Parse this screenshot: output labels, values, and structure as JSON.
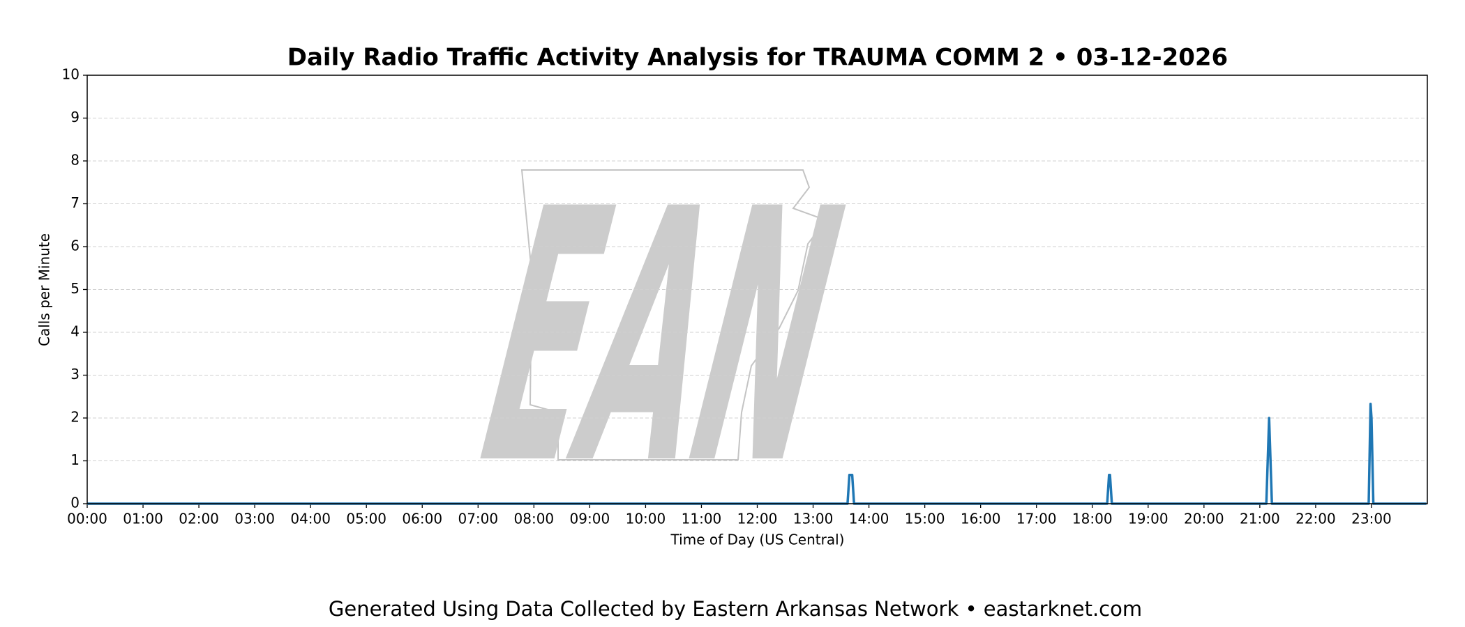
{
  "chart_data": {
    "type": "line",
    "title": "Daily Radio Traffic Activity Analysis for TRAUMA COMM 2 • 03-12-2026",
    "xlabel": "Time of Day (US Central)",
    "ylabel": "Calls per Minute",
    "watermark": "EAN",
    "caption": "Generated Using Data Collected by Eastern Arkansas Network • eastarknet.com",
    "x": [
      0,
      817,
      819,
      822,
      824,
      1096,
      1098,
      1099,
      1101,
      1267,
      1270,
      1273,
      1377,
      1379,
      1380,
      1382,
      1439
    ],
    "series": [
      {
        "name": "Calls per Minute",
        "color": "#1f77b4",
        "values": [
          0,
          0,
          0.67,
          0.67,
          0,
          0,
          0.67,
          0.67,
          0,
          0,
          2,
          0,
          0,
          2.33,
          2,
          0,
          0
        ]
      }
    ],
    "xlim": [
      0,
      1440
    ],
    "ylim": [
      0,
      10
    ],
    "xticks": [
      {
        "value": 0,
        "label": "00:00"
      },
      {
        "value": 60,
        "label": "01:00"
      },
      {
        "value": 120,
        "label": "02:00"
      },
      {
        "value": 180,
        "label": "03:00"
      },
      {
        "value": 240,
        "label": "04:00"
      },
      {
        "value": 300,
        "label": "05:00"
      },
      {
        "value": 360,
        "label": "06:00"
      },
      {
        "value": 420,
        "label": "07:00"
      },
      {
        "value": 480,
        "label": "08:00"
      },
      {
        "value": 540,
        "label": "09:00"
      },
      {
        "value": 600,
        "label": "10:00"
      },
      {
        "value": 660,
        "label": "11:00"
      },
      {
        "value": 720,
        "label": "12:00"
      },
      {
        "value": 780,
        "label": "13:00"
      },
      {
        "value": 840,
        "label": "14:00"
      },
      {
        "value": 900,
        "label": "15:00"
      },
      {
        "value": 960,
        "label": "16:00"
      },
      {
        "value": 1020,
        "label": "17:00"
      },
      {
        "value": 1080,
        "label": "18:00"
      },
      {
        "value": 1140,
        "label": "19:00"
      },
      {
        "value": 1200,
        "label": "20:00"
      },
      {
        "value": 1260,
        "label": "21:00"
      },
      {
        "value": 1320,
        "label": "22:00"
      },
      {
        "value": 1380,
        "label": "23:00"
      }
    ],
    "yticks": [
      0,
      1,
      2,
      3,
      4,
      5,
      6,
      7,
      8,
      9,
      10
    ],
    "grid": true
  }
}
